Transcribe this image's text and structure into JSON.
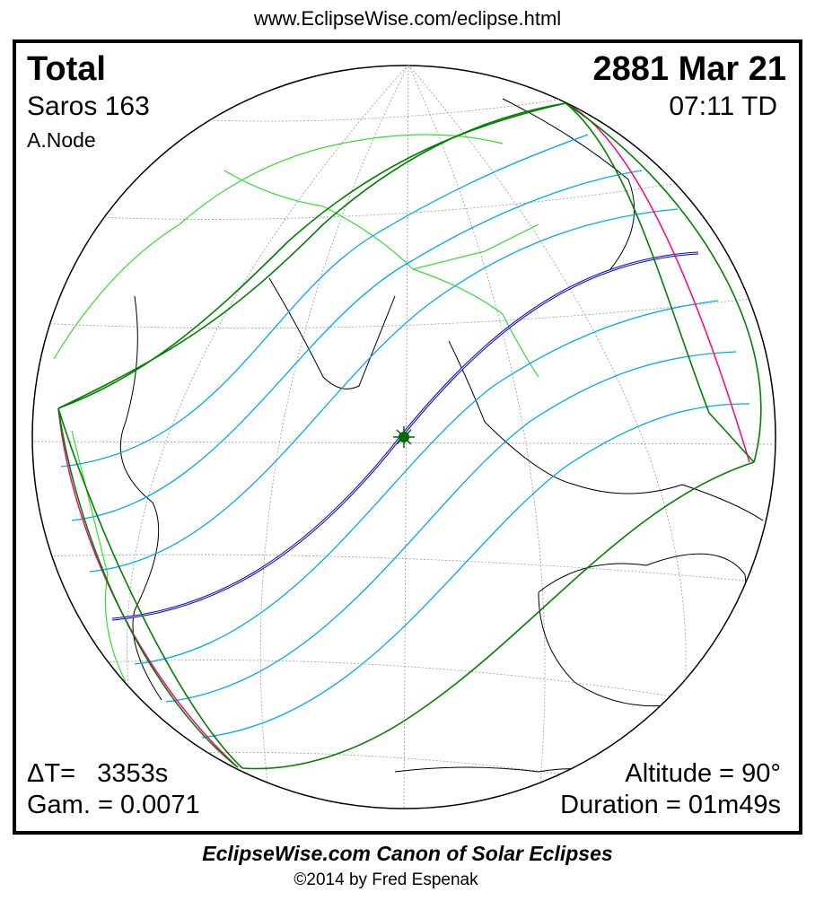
{
  "header": {
    "url": "www.EclipseWise.com/eclipse.html"
  },
  "eclipse": {
    "type": "Total",
    "date": "2881 Mar 21",
    "saros": "Saros 163",
    "time": "07:11 TD",
    "node": "A.Node",
    "delta_t": "ΔT=   3353s",
    "gamma": "Gam. = 0.0071",
    "altitude": "Altitude = 90°",
    "duration": "Duration = 01m49s"
  },
  "footer": {
    "canon": "EclipseWise.com Canon of Solar Eclipses",
    "copyright": "©2014 by Fred Espenak"
  },
  "colors": {
    "central_line": "#0000cc",
    "penumbral_limits": "#008000",
    "rise_set_limits": "#ff0080",
    "magnitude_lines": "#00aaee",
    "borders": "#33dd33",
    "coastlines": "#000000",
    "grid": "#999999"
  }
}
